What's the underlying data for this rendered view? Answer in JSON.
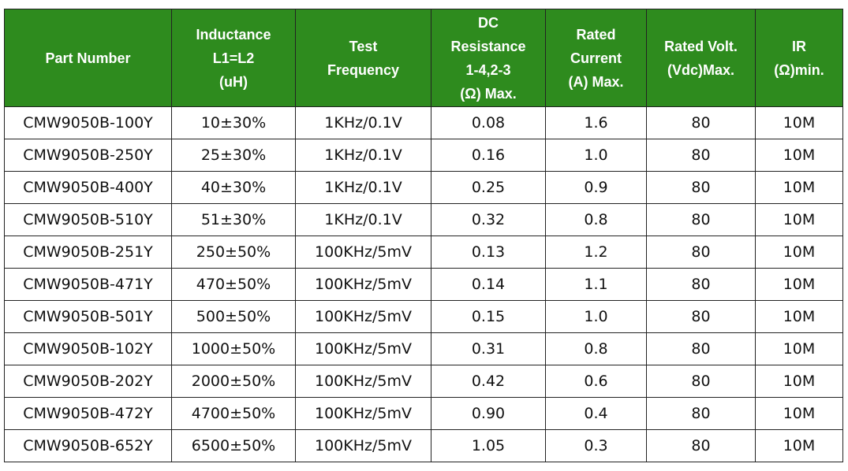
{
  "headers": [
    [
      "Part Number"
    ],
    [
      "Inductance",
      "L1=L2",
      "(uH)"
    ],
    [
      "Test",
      "Frequency"
    ],
    [
      "DC",
      "Resistance",
      "1-4,2-3",
      "(Ω) Max."
    ],
    [
      "Rated",
      "Current",
      "(A) Max."
    ],
    [
      "Rated Volt.",
      "(Vdc)Max."
    ],
    [
      "IR",
      "(Ω)min."
    ]
  ],
  "rows": [
    [
      "CMW9050B-100Y",
      "10±30%",
      "1KHz/0.1V",
      "0.08",
      "1.6",
      "80",
      "10M"
    ],
    [
      "CMW9050B-250Y",
      "25±30%",
      "1KHz/0.1V",
      "0.16",
      "1.0",
      "80",
      "10M"
    ],
    [
      "CMW9050B-400Y",
      "40±30%",
      "1KHz/0.1V",
      "0.25",
      "0.9",
      "80",
      "10M"
    ],
    [
      "CMW9050B-510Y",
      "51±30%",
      "1KHz/0.1V",
      "0.32",
      "0.8",
      "80",
      "10M"
    ],
    [
      "CMW9050B-251Y",
      "250±50%",
      "100KHz/5mV",
      "0.13",
      "1.2",
      "80",
      "10M"
    ],
    [
      "CMW9050B-471Y",
      "470±50%",
      "100KHz/5mV",
      "0.14",
      "1.1",
      "80",
      "10M"
    ],
    [
      "CMW9050B-501Y",
      "500±50%",
      "100KHz/5mV",
      "0.15",
      "1.0",
      "80",
      "10M"
    ],
    [
      "CMW9050B-102Y",
      "1000±50%",
      "100KHz/5mV",
      "0.31",
      "0.8",
      "80",
      "10M"
    ],
    [
      "CMW9050B-202Y",
      "2000±50%",
      "100KHz/5mV",
      "0.42",
      "0.6",
      "80",
      "10M"
    ],
    [
      "CMW9050B-472Y",
      "4700±50%",
      "100KHz/5mV",
      "0.90",
      "0.4",
      "80",
      "10M"
    ],
    [
      "CMW9050B-652Y",
      "6500±50%",
      "100KHz/5mV",
      "1.05",
      "0.3",
      "80",
      "10M"
    ]
  ],
  "colors": {
    "header_bg": "#2e8b1e",
    "header_text": "#ffffff",
    "border": "#222222"
  }
}
